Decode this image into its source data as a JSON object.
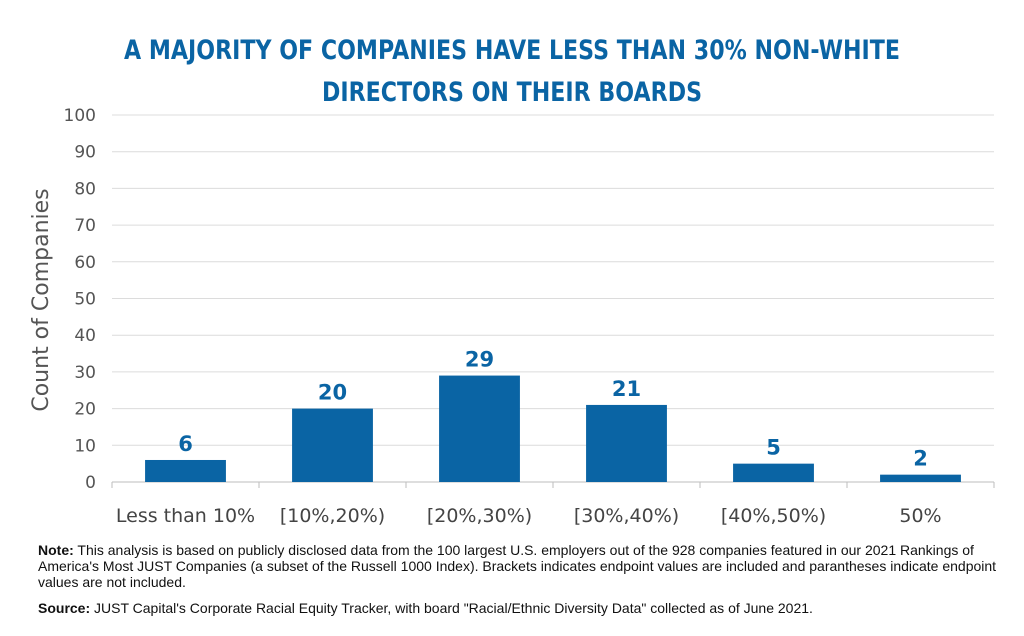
{
  "chart_data": {
    "type": "bar",
    "title_lines": [
      "A MAJORITY OF COMPANIES HAVE LESS THAN 30% NON-WHITE",
      "DIRECTORS ON THEIR BOARDS"
    ],
    "xlabel": "",
    "ylabel": "Count of Companies",
    "ylim": [
      0,
      100
    ],
    "yticks": [
      0,
      10,
      20,
      30,
      40,
      50,
      60,
      70,
      80,
      90,
      100
    ],
    "grid": true,
    "categories": [
      "Less than 10%",
      "[10%,20%)",
      "[20%,30%)",
      "[30%,40%)",
      "[40%,50%)",
      "50%"
    ],
    "values": [
      6,
      20,
      29,
      21,
      5,
      2
    ],
    "bar_color": "#0a64a4",
    "label_color": "#0a64a4",
    "grid_color": "#dcdcdc"
  },
  "notes": {
    "note_label": "Note:",
    "note_text": " This analysis is based on publicly disclosed data from the 100 largest U.S. employers out of the 928 companies featured in our 2021 Rankings of America's Most JUST Companies (a subset of the Russell 1000 Index). Brackets indicates endpoint values are included and parantheses indicate endpoint values are not included.",
    "source_label": "Source:",
    "source_text": " JUST Capital's Corporate Racial Equity Tracker, with board \"Racial/Ethnic Diversity Data\" collected as of June 2021."
  }
}
